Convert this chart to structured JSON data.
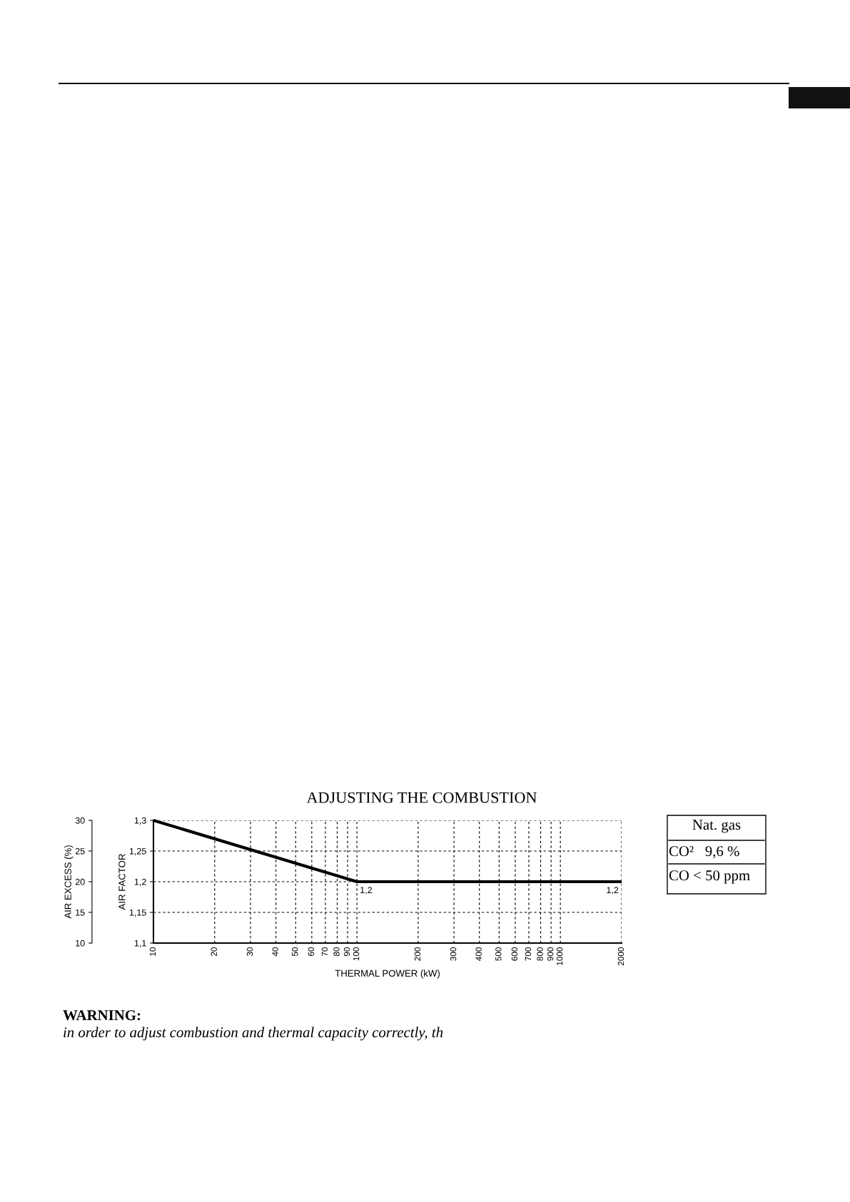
{
  "chart_data": {
    "type": "line",
    "title": "ADJUSTING THE COMBUSTION",
    "xlabel": "THERMAL POWER (kW)",
    "ylabel": "AIR FACTOR",
    "y2label": "AIR EXCESS (%)",
    "x": [
      10,
      100,
      2000
    ],
    "series": [
      {
        "color": "#000000",
        "values": [
          1.3,
          1.2,
          1.2
        ]
      }
    ],
    "log": "x",
    "grid": true,
    "line_style": "solid",
    "xlim": [
      10,
      2000
    ],
    "xticks": [
      10,
      20,
      30,
      40,
      50,
      60,
      70,
      80,
      90,
      100,
      200,
      300,
      400,
      500,
      600,
      700,
      800,
      900,
      1000,
      2000
    ],
    "ylim": [
      1.1,
      1.3
    ],
    "yticks": [
      {
        "value": 1.1,
        "label": "1,1"
      },
      {
        "value": 1.15,
        "label": "1,15"
      },
      {
        "value": 1.2,
        "label": "1,2"
      },
      {
        "value": 1.25,
        "label": "1,25"
      },
      {
        "value": 1.3,
        "label": "1,3"
      }
    ],
    "y2lim": [
      10,
      30
    ],
    "y2ticks": [
      10,
      15,
      20,
      25,
      30
    ],
    "annotations": [
      {
        "text": "1,2",
        "x": 100,
        "y": 1.2
      },
      {
        "text": "1,2",
        "x": 2000,
        "y": 1.2
      },
      "Nat. gas",
      "CO²   9,6 %",
      "CO < 50 ppm",
      "WARNING:",
      "in order to adjust combustion and thermal capacity correctly, th"
    ]
  }
}
